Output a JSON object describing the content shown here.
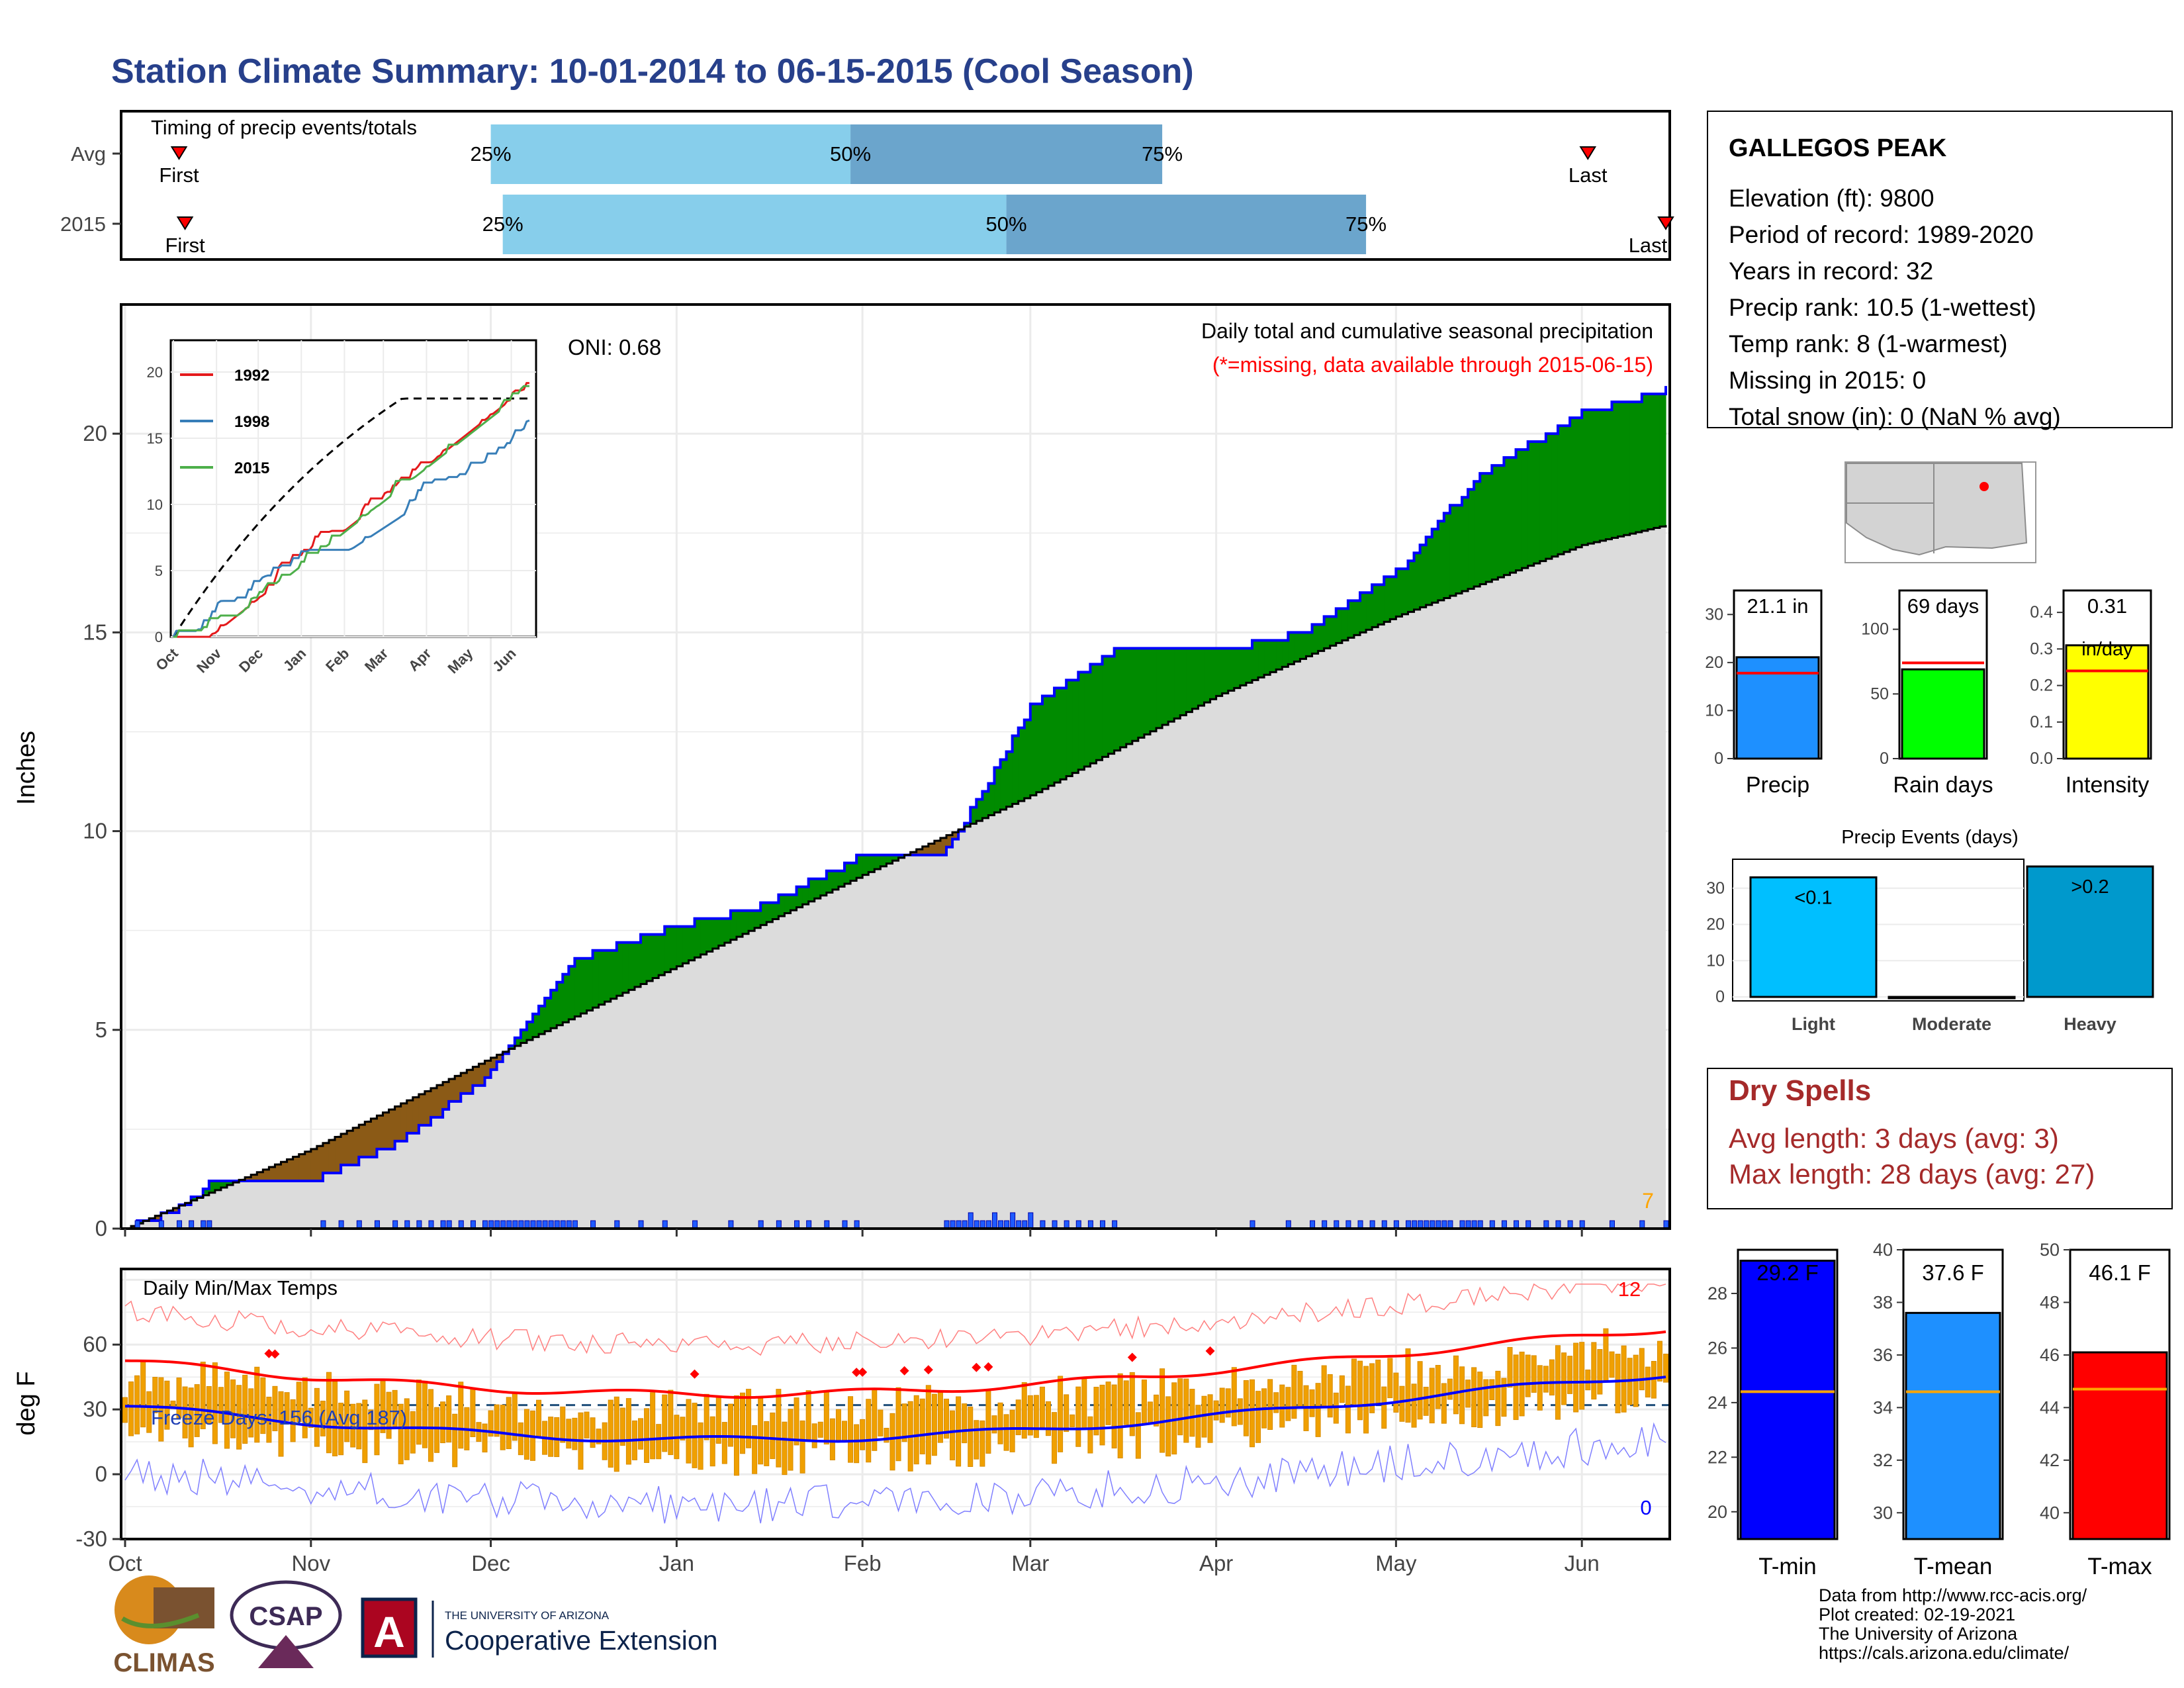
{
  "title": "Station Climate Summary: 10-01-2014 to 06-15-2015 (Cool Season)",
  "timing": {
    "label": "Timing of precip events/totals",
    "rows": [
      {
        "name": "Avg",
        "first_label": "First",
        "last_label": "Last",
        "p25": "25%",
        "p50": "50%",
        "p75": "75%"
      },
      {
        "name": "2015",
        "first_label": "First",
        "last_label": "Last",
        "p25": "25%",
        "p50": "50%",
        "p75": "75%"
      }
    ],
    "row_dates": [
      {
        "first": "2014-10-10",
        "p25": "2014-12-01",
        "p50": "2015-01-30",
        "p75": "2015-03-23",
        "last": "2015-06-02"
      },
      {
        "first": "2014-10-11",
        "p25": "2014-12-03",
        "p50": "2015-02-25",
        "p75": "2015-04-26",
        "last": "2015-06-15"
      }
    ]
  },
  "station": {
    "name": "GALLEGOS PEAK",
    "lines": [
      "Elevation (ft): 9800",
      "Period of record: 1989-2020",
      "Years in record: 32",
      "Precip rank: 10.5 (1-wettest)",
      "Temp rank: 8 (1-warmest)",
      "Missing in 2015: 0",
      "Total snow (in): 0 (NaN % avg)"
    ]
  },
  "precip_panel": {
    "ylabel": "Inches",
    "y_ticks": [
      "0",
      "5",
      "10",
      "15",
      "20"
    ],
    "oni": "ONI: 0.68",
    "caption": "Daily total and cumulative seasonal precipitation",
    "missing_note": "(*=missing, data available through 2015-06-15)",
    "max_daily_label": "7"
  },
  "inset": {
    "legend": [
      "1992",
      "1998",
      "2015"
    ],
    "colors": [
      "#e41a1c",
      "#377eb8",
      "#4daf4a"
    ],
    "y_ticks": [
      "0",
      "5",
      "10",
      "15",
      "20"
    ],
    "x_ticks": [
      "Oct",
      "Nov",
      "Dec",
      "Jan",
      "Feb",
      "Mar",
      "Apr",
      "May",
      "Jun"
    ]
  },
  "temp_panel": {
    "ylabel": "deg F",
    "label": "Daily Min/Max Temps",
    "freeze": "Freeze Days: 156 (Avg 187)",
    "record_high_count": "12",
    "record_low_count": "0",
    "y_ticks": [
      "-30",
      "0",
      "30",
      "60"
    ]
  },
  "months": [
    "Oct",
    "Nov",
    "Dec",
    "Jan",
    "Feb",
    "Mar",
    "Apr",
    "May",
    "Jun"
  ],
  "summary_bars": [
    {
      "name": "Precip",
      "label": "21.1 in",
      "value": 21.1,
      "avg": 17.8,
      "ymax": 35,
      "ticks": [
        "0",
        "10",
        "20",
        "30"
      ],
      "color": "#1e90ff"
    },
    {
      "name": "Rain days",
      "label": "69 days",
      "value": 69,
      "avg": 74,
      "ymax": 130,
      "ticks": [
        "0",
        "50",
        "100"
      ],
      "color": "#00ff00"
    },
    {
      "name": "Intensity",
      "label": "0.31",
      "label2": "in/day",
      "value": 0.31,
      "avg": 0.24,
      "ymax": 0.46,
      "ticks": [
        "0.0",
        "0.1",
        "0.2",
        "0.3",
        "0.4"
      ],
      "color": "#ffff00"
    }
  ],
  "events": {
    "title": "Precip Events (days)",
    "categories": [
      "Light",
      "Moderate",
      "Heavy"
    ],
    "labels": [
      "<0.1",
      "",
      ">0.2"
    ],
    "values": [
      33,
      0,
      36
    ],
    "ticks": [
      "0",
      "10",
      "20",
      "30"
    ],
    "colors": [
      "#00bfff",
      "#1e90ff",
      "#0099cc"
    ]
  },
  "dry_spells": {
    "title": "Dry Spells",
    "avg": "Avg length: 3 days (avg: 3)",
    "max": "Max length: 28 days (avg: 27)"
  },
  "temp_bars": [
    {
      "name": "T-min",
      "label": "29.2 F",
      "value": 29.2,
      "avg": 24.4,
      "ymin": 19,
      "ymax": 29.6,
      "ticks": [
        "20",
        "22",
        "24",
        "26",
        "28"
      ],
      "color": "#0000ff"
    },
    {
      "name": "T-mean",
      "label": "37.6 F",
      "value": 37.6,
      "avg": 34.6,
      "ymin": 29,
      "ymax": 40.0,
      "ticks": [
        "30",
        "32",
        "34",
        "36",
        "38",
        "40"
      ],
      "color": "#1e90ff"
    },
    {
      "name": "T-max",
      "label": "46.1 F",
      "value": 46.1,
      "avg": 44.7,
      "ymin": 39,
      "ymax": 50.0,
      "ticks": [
        "40",
        "42",
        "44",
        "46",
        "48",
        "50"
      ],
      "color": "#ff0000"
    }
  ],
  "footer": {
    "lines": [
      "Data from http://www.rcc-acis.org/",
      "Plot created: 02-19-2021",
      "The University of Arizona",
      "https://cals.arizona.edu/climate/"
    ],
    "logo_climas": "CLIMAS",
    "logo_csap": "CSAP",
    "logo_ua_top": "THE UNIVERSITY OF ARIZONA",
    "logo_ua": "Cooperative Extension"
  },
  "chart_data": {
    "type": "area",
    "title": "Daily total and cumulative seasonal precipitation",
    "xlabel": "",
    "ylabel": "Inches",
    "ylim": [
      0,
      23
    ],
    "series": [
      {
        "name": "2015 cumulative",
        "x": [
          "2014-10-01",
          "2014-10-10",
          "2014-10-15",
          "2014-11-01",
          "2014-11-15",
          "2014-12-01",
          "2014-12-15",
          "2015-01-01",
          "2015-01-15",
          "2015-02-01",
          "2015-02-15",
          "2015-03-01",
          "2015-03-15",
          "2015-04-01",
          "2015-04-15",
          "2015-05-01",
          "2015-05-15",
          "2015-06-01",
          "2015-06-15"
        ],
        "values": [
          0,
          0.5,
          1.1,
          1.2,
          2.1,
          3.9,
          6.8,
          7.6,
          8.1,
          9.4,
          9.5,
          13.1,
          14.5,
          14.5,
          15.0,
          16.5,
          19.0,
          20.5,
          21.1
        ]
      },
      {
        "name": "Avg cumulative",
        "x": [
          "2014-10-01",
          "2014-11-01",
          "2014-12-01",
          "2015-01-01",
          "2015-02-01",
          "2015-03-01",
          "2015-04-01",
          "2015-05-01",
          "2015-06-01",
          "2015-06-15"
        ],
        "values": [
          0,
          2.0,
          4.3,
          6.6,
          8.9,
          10.9,
          13.4,
          15.4,
          17.2,
          17.7
        ]
      }
    ]
  }
}
